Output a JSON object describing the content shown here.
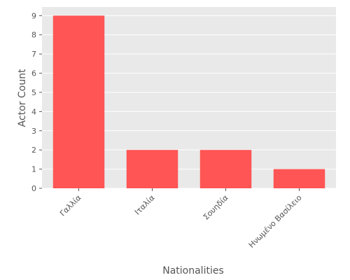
{
  "chart_data": {
    "type": "bar",
    "title": "",
    "xlabel": "Nationalities",
    "ylabel": "Actor Count",
    "categories": [
      "Γαλλία",
      "Ιταλία",
      "Σουηδία",
      "Ηνωμένο Βασίλειο"
    ],
    "values": [
      9,
      2,
      2,
      1
    ],
    "ylim": [
      0,
      9.45
    ],
    "yticks": [
      0,
      1,
      2,
      3,
      4,
      5,
      6,
      7,
      8,
      9
    ],
    "grid": true,
    "legend": "none",
    "colors": {
      "bar": "#FF5555",
      "plot_background": "#E9E9E9",
      "grid": "#FFFFFF",
      "text": "#555555"
    }
  }
}
